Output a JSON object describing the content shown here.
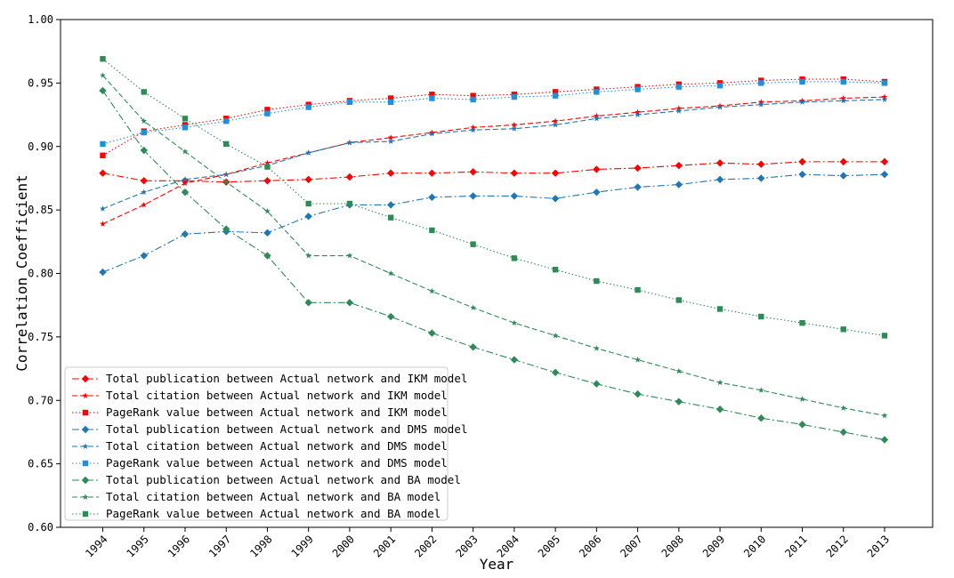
{
  "chart_data": {
    "type": "line",
    "title": "",
    "xlabel": "Year",
    "ylabel": "Correlation Coefficient",
    "x": [
      "1994",
      "1995",
      "1996",
      "1997",
      "1998",
      "1999",
      "2000",
      "2001",
      "2002",
      "2003",
      "2004",
      "2005",
      "2006",
      "2007",
      "2008",
      "2009",
      "2010",
      "2011",
      "2012",
      "2013"
    ],
    "ylim": [
      0.6,
      1.0
    ],
    "yticks": [
      "0.60",
      "0.65",
      "0.70",
      "0.75",
      "0.80",
      "0.85",
      "0.90",
      "0.95",
      "1.00"
    ],
    "grid": false,
    "legend_position": "lower-left",
    "series": [
      {
        "name": "Total publication between Actual network and IKM model",
        "color": "#ff0000",
        "dash": "dashdot",
        "marker": "diamond",
        "values": [
          0.879,
          0.873,
          0.873,
          0.872,
          0.873,
          0.874,
          0.876,
          0.879,
          0.879,
          0.88,
          0.879,
          0.879,
          0.882,
          0.883,
          0.885,
          0.887,
          0.886,
          0.888,
          0.888,
          0.888
        ]
      },
      {
        "name": "Total citation between Actual network and IKM model",
        "color": "#ff0000",
        "dash": "dashed",
        "marker": "star",
        "values": [
          0.839,
          0.854,
          0.871,
          0.878,
          0.887,
          0.895,
          0.903,
          0.907,
          0.911,
          0.915,
          0.917,
          0.92,
          0.924,
          0.927,
          0.93,
          0.932,
          0.935,
          0.936,
          0.938,
          0.939
        ]
      },
      {
        "name": "PageRank value between Actual network and IKM model",
        "color": "#ff0000",
        "dash": "dotted",
        "marker": "square",
        "values": [
          0.893,
          0.912,
          0.917,
          0.922,
          0.929,
          0.933,
          0.936,
          0.938,
          0.941,
          0.94,
          0.941,
          0.943,
          0.945,
          0.947,
          0.949,
          0.95,
          0.952,
          0.953,
          0.953,
          0.951
        ]
      },
      {
        "name": "Total publication between Actual network and DMS model",
        "color": "#1f77b4",
        "dash": "dashdot",
        "marker": "diamond",
        "values": [
          0.801,
          0.814,
          0.831,
          0.833,
          0.832,
          0.845,
          0.854,
          0.854,
          0.86,
          0.861,
          0.861,
          0.859,
          0.864,
          0.868,
          0.87,
          0.874,
          0.875,
          0.878,
          0.877,
          0.878
        ]
      },
      {
        "name": "Total citation between Actual network and DMS model",
        "color": "#1f77b4",
        "dash": "dashed",
        "marker": "star",
        "values": [
          0.851,
          0.864,
          0.874,
          0.878,
          0.885,
          0.895,
          0.903,
          0.904,
          0.91,
          0.913,
          0.914,
          0.917,
          0.922,
          0.925,
          0.928,
          0.931,
          0.933,
          0.935,
          0.936,
          0.937
        ]
      },
      {
        "name": "PageRank value between Actual network and DMS model",
        "color": "#1f8fdf",
        "dash": "dotted",
        "marker": "square",
        "values": [
          0.902,
          0.911,
          0.915,
          0.92,
          0.926,
          0.931,
          0.935,
          0.935,
          0.938,
          0.937,
          0.939,
          0.94,
          0.943,
          0.945,
          0.947,
          0.948,
          0.95,
          0.951,
          0.951,
          0.95
        ]
      },
      {
        "name": "Total publication between Actual network and BA model",
        "color": "#2e8b57",
        "dash": "dashdot",
        "marker": "diamond",
        "values": [
          0.944,
          0.897,
          0.864,
          0.835,
          0.814,
          0.777,
          0.777,
          0.766,
          0.753,
          0.742,
          0.732,
          0.722,
          0.713,
          0.705,
          0.699,
          0.693,
          0.686,
          0.681,
          0.675,
          0.669
        ]
      },
      {
        "name": "Total citation between Actual network and BA model",
        "color": "#2e8b57",
        "dash": "dashed",
        "marker": "star",
        "values": [
          0.956,
          0.92,
          0.896,
          0.872,
          0.849,
          0.814,
          0.814,
          0.8,
          0.786,
          0.773,
          0.761,
          0.751,
          0.741,
          0.732,
          0.723,
          0.714,
          0.708,
          0.701,
          0.694,
          0.688
        ]
      },
      {
        "name": "PageRank value between Actual network and BA model",
        "color": "#2e8b57",
        "dash": "dotted",
        "marker": "square",
        "values": [
          0.969,
          0.943,
          0.922,
          0.902,
          0.884,
          0.855,
          0.855,
          0.844,
          0.834,
          0.823,
          0.812,
          0.803,
          0.794,
          0.787,
          0.779,
          0.772,
          0.766,
          0.761,
          0.756,
          0.751
        ]
      }
    ]
  }
}
